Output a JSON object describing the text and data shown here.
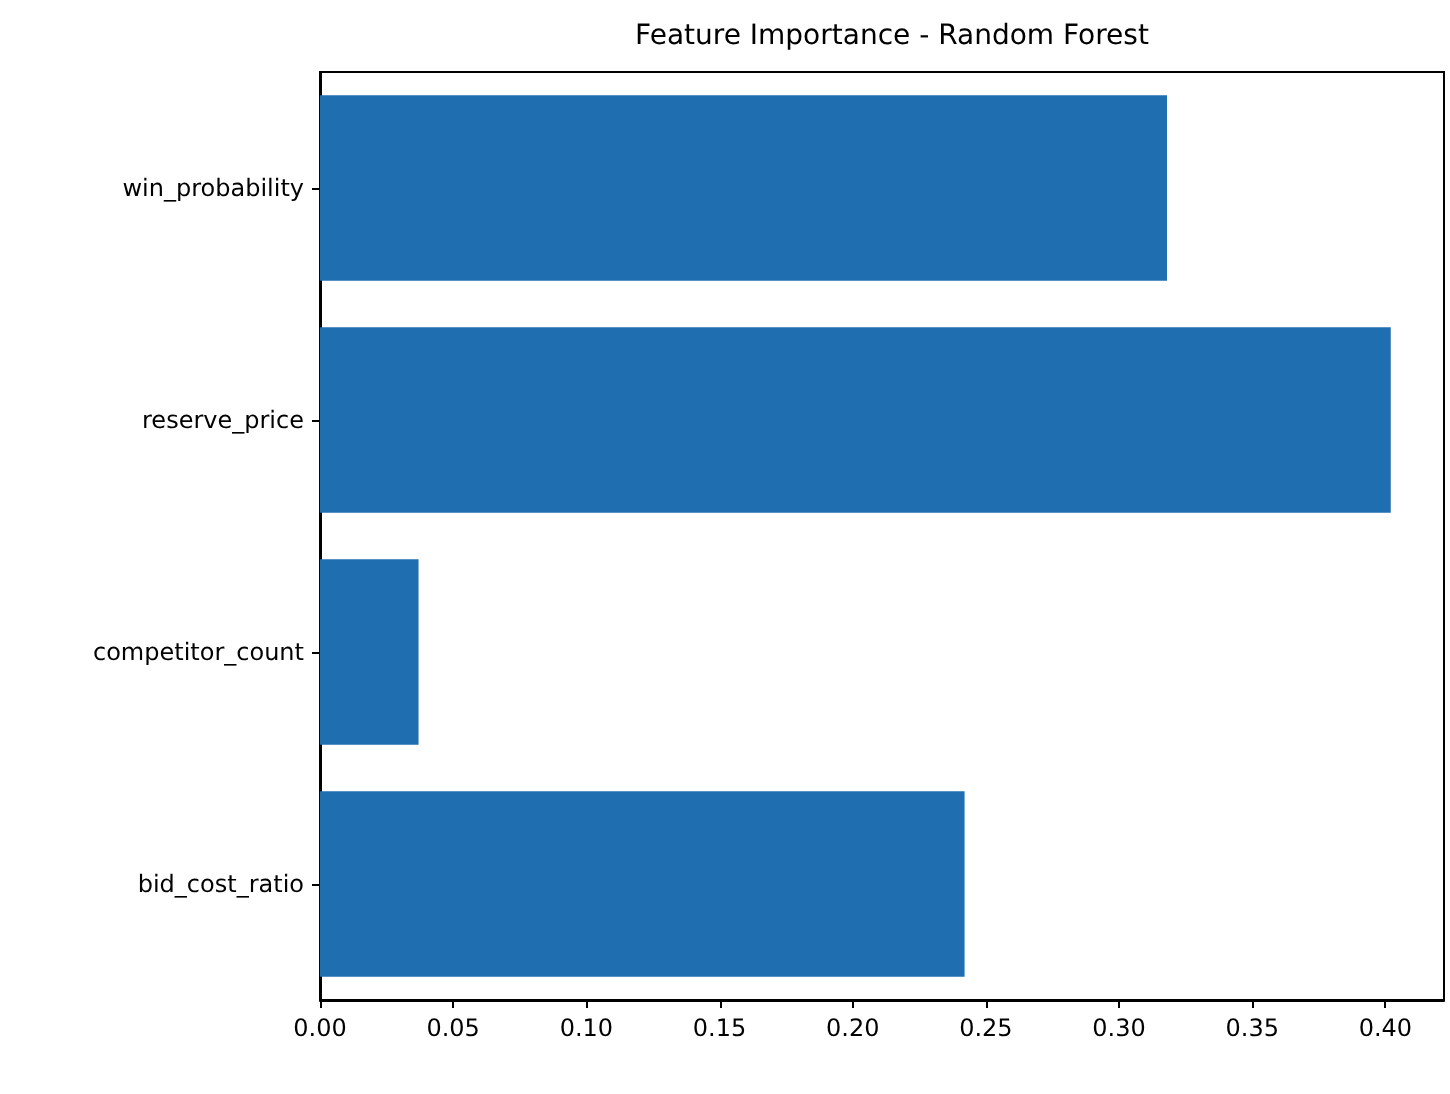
{
  "chart_data": {
    "type": "bar",
    "orientation": "horizontal",
    "title": "Feature Importance - Random Forest",
    "categories": [
      "win_probability",
      "reserve_price",
      "competitor_count",
      "bid_cost_ratio"
    ],
    "values": [
      0.318,
      0.402,
      0.037,
      0.242
    ],
    "color": "#1f6eb0",
    "xlim": [
      0,
      0.422
    ],
    "xticks": [
      {
        "value": 0,
        "label": "0.00"
      },
      {
        "value": 0.05,
        "label": "0.05"
      },
      {
        "value": 0.1,
        "label": "0.10"
      },
      {
        "value": 0.15,
        "label": "0.15"
      },
      {
        "value": 0.2,
        "label": "0.20"
      },
      {
        "value": 0.25,
        "label": "0.25"
      },
      {
        "value": 0.3,
        "label": "0.30"
      },
      {
        "value": 0.35,
        "label": "0.35"
      },
      {
        "value": 0.4,
        "label": "0.40"
      }
    ],
    "grid": false
  }
}
